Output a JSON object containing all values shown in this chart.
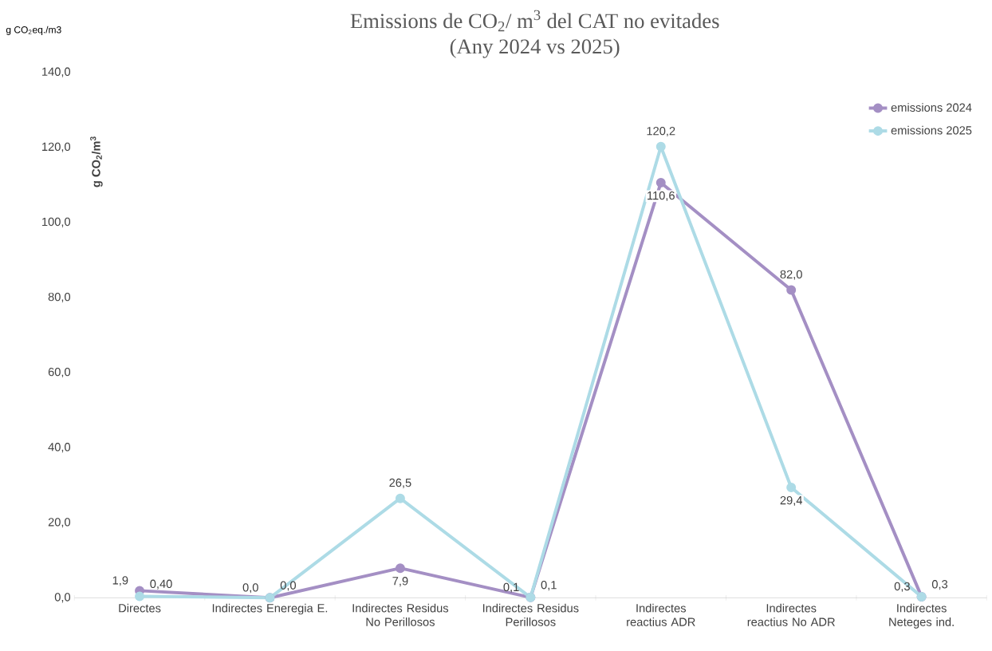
{
  "chart_data": {
    "type": "line",
    "title": "Emissions de CO$_{2}$/ m$^{3}$ del CAT no evitades",
    "subtitle": "(Any 2024 vs 2025)",
    "ylabel": "g CO$_{2}$/m$^{3}$",
    "annotations": [
      "g CO$_{2}$eq./m3"
    ],
    "categories": [
      "Directes",
      "Indirectes Eneregia E.",
      "Indirectes Residus No Perillosos",
      "Indirectes Residus Perillosos",
      "Indirectes reactius ADR",
      "Indirectes reactius No ADR",
      "Indirectes Neteges ind."
    ],
    "series": [
      {
        "name": "emissions 2024",
        "color": "#a48fc4",
        "values": [
          1.9,
          0.0,
          7.9,
          0.1,
          110.6,
          82.0,
          0.3
        ],
        "value_labels": [
          "1,9",
          "0,0",
          "7,9",
          "0,1",
          "110,6",
          "82,0",
          "0,3"
        ]
      },
      {
        "name": "emissions 2025",
        "color": "#addbe6",
        "values": [
          0.4,
          0.0,
          26.5,
          0.1,
          120.2,
          29.4,
          0.3
        ],
        "value_labels": [
          "0,40",
          "0,0",
          "26,5",
          "0,1",
          "120,2",
          "29,4",
          "0,3"
        ]
      }
    ],
    "ylim": [
      0,
      140
    ],
    "yticks": [
      {
        "value": 0,
        "label": "0,0"
      },
      {
        "value": 20,
        "label": "20,0"
      },
      {
        "value": 40,
        "label": "40,0"
      },
      {
        "value": 60,
        "label": "60,0"
      },
      {
        "value": 80,
        "label": "80,0"
      },
      {
        "value": 100,
        "label": "100,0"
      },
      {
        "value": 120,
        "label": "120,0"
      },
      {
        "value": 140,
        "label": "140,0"
      }
    ],
    "grid": false,
    "legend": "top right",
    "marker": "circle",
    "line_style": "solid"
  }
}
